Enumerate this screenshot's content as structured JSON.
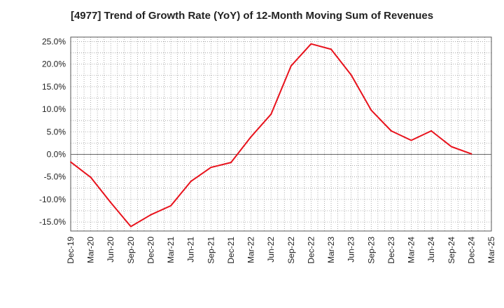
{
  "chart_data": {
    "type": "line",
    "title": "[4977]  Trend of Growth Rate (YoY) of 12-Month Moving Sum of Revenues",
    "xlabel": "",
    "ylabel": "",
    "ylim": [
      -17,
      26
    ],
    "y_ticks": [
      25,
      20,
      15,
      10,
      5,
      0,
      -5,
      -10,
      -15
    ],
    "y_tick_labels": [
      "25.0%",
      "20.0%",
      "15.0%",
      "10.0%",
      "5.0%",
      "0.0%",
      "-5.0%",
      "-10.0%",
      "-15.0%"
    ],
    "x_tick_labels": [
      "Dec-19",
      "Mar-20",
      "Jun-20",
      "Sep-20",
      "Dec-20",
      "Mar-21",
      "Jun-21",
      "Sep-21",
      "Dec-21",
      "Mar-22",
      "Jun-22",
      "Sep-22",
      "Dec-22",
      "Mar-23",
      "Jun-23",
      "Sep-23",
      "Dec-23",
      "Mar-24",
      "Jun-24",
      "Sep-24",
      "Dec-24",
      "Mar-25"
    ],
    "grid": true,
    "line_color": "#e8121c",
    "zero_line": true,
    "series": [
      {
        "values": [
          -1.7,
          -5.1,
          -10.7,
          -16.0,
          -13.4,
          -11.4,
          -6.0,
          -2.9,
          -1.8,
          3.9,
          8.9,
          19.6,
          24.5,
          23.3,
          17.6,
          9.8,
          5.2,
          3.1,
          5.2,
          1.7,
          0.1
        ]
      }
    ]
  }
}
